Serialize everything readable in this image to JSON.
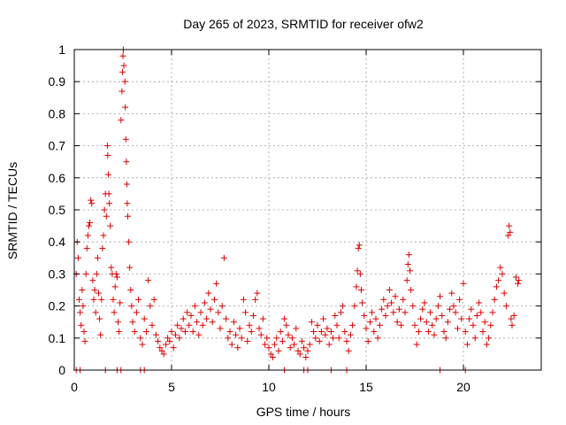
{
  "chart_data": {
    "type": "scatter",
    "title": "Day 265 of 2023, SRMTID for receiver ofw2",
    "xlabel": "GPS time / hours",
    "ylabel": "SRMTID / TECUs",
    "xlim": [
      0,
      24
    ],
    "ylim": [
      0,
      1
    ],
    "xticks": [
      0,
      5,
      10,
      15,
      20
    ],
    "xtick_labels": [
      "0",
      "5",
      "10",
      "15",
      "20"
    ],
    "yticks": [
      0,
      0.1,
      0.2,
      0.3,
      0.4,
      0.5,
      0.6,
      0.7,
      0.8,
      0.9,
      1
    ],
    "ytick_labels": [
      "0",
      "0.1",
      "0.2",
      "0.3",
      "0.4",
      "0.5",
      "0.6",
      "0.7",
      "0.8",
      "0.9",
      "1"
    ],
    "grid": true,
    "marker": "plus",
    "series": [
      {
        "name": "SRMTID",
        "color": "#e00000",
        "points": [
          [
            0.1,
            0.0
          ],
          [
            0.1,
            0.3
          ],
          [
            0.15,
            0.4
          ],
          [
            0.2,
            0.35
          ],
          [
            0.25,
            0.22
          ],
          [
            0.3,
            0.18
          ],
          [
            0.35,
            0.14
          ],
          [
            0.4,
            0.25
          ],
          [
            0.45,
            0.2
          ],
          [
            0.5,
            0.12
          ],
          [
            0.55,
            0.09
          ],
          [
            0.6,
            0.3
          ],
          [
            0.65,
            0.38
          ],
          [
            0.7,
            0.42
          ],
          [
            0.75,
            0.45
          ],
          [
            0.8,
            0.46
          ],
          [
            0.85,
            0.53
          ],
          [
            0.9,
            0.52
          ],
          [
            0.95,
            0.28
          ],
          [
            1.0,
            0.22
          ],
          [
            1.05,
            0.25
          ],
          [
            1.1,
            0.18
          ],
          [
            1.15,
            0.3
          ],
          [
            1.2,
            0.35
          ],
          [
            1.25,
            0.24
          ],
          [
            1.3,
            0.16
          ],
          [
            1.35,
            0.11
          ],
          [
            1.4,
            0.22
          ],
          [
            1.45,
            0.38
          ],
          [
            1.5,
            0.42
          ],
          [
            1.55,
            0.5
          ],
          [
            1.6,
            0.55
          ],
          [
            1.65,
            0.48
          ],
          [
            1.7,
            0.7
          ],
          [
            1.72,
            0.67
          ],
          [
            1.75,
            0.61
          ],
          [
            1.78,
            0.55
          ],
          [
            1.8,
            0.52
          ],
          [
            1.85,
            0.45
          ],
          [
            1.9,
            0.32
          ],
          [
            1.95,
            0.3
          ],
          [
            2.0,
            0.22
          ],
          [
            2.05,
            0.18
          ],
          [
            2.1,
            0.26
          ],
          [
            2.15,
            0.3
          ],
          [
            2.2,
            0.29
          ],
          [
            2.25,
            0.15
          ],
          [
            2.3,
            0.12
          ],
          [
            2.35,
            0.21
          ],
          [
            2.4,
            0.78
          ],
          [
            2.45,
            0.87
          ],
          [
            2.48,
            0.93
          ],
          [
            2.5,
            0.98
          ],
          [
            2.52,
            1.0
          ],
          [
            2.55,
            0.95
          ],
          [
            2.6,
            0.9
          ],
          [
            2.62,
            0.82
          ],
          [
            2.65,
            0.72
          ],
          [
            2.68,
            0.65
          ],
          [
            2.7,
            0.58
          ],
          [
            2.72,
            0.52
          ],
          [
            2.75,
            0.48
          ],
          [
            2.8,
            0.4
          ],
          [
            2.85,
            0.32
          ],
          [
            2.9,
            0.25
          ],
          [
            2.95,
            0.2
          ],
          [
            3.0,
            0.15
          ],
          [
            3.1,
            0.12
          ],
          [
            3.2,
            0.18
          ],
          [
            3.3,
            0.22
          ],
          [
            3.4,
            0.1
          ],
          [
            3.5,
            0.08
          ],
          [
            3.6,
            0.16
          ],
          [
            3.7,
            0.12
          ],
          [
            3.8,
            0.28
          ],
          [
            3.9,
            0.2
          ],
          [
            4.0,
            0.14
          ],
          [
            4.1,
            0.22
          ],
          [
            4.2,
            0.11
          ],
          [
            4.3,
            0.09
          ],
          [
            4.4,
            0.07
          ],
          [
            4.5,
            0.06
          ],
          [
            4.6,
            0.05
          ],
          [
            4.7,
            0.08
          ],
          [
            4.8,
            0.1
          ],
          [
            4.9,
            0.09
          ],
          [
            5.0,
            0.12
          ],
          [
            5.1,
            0.07
          ],
          [
            5.2,
            0.11
          ],
          [
            5.3,
            0.14
          ],
          [
            5.4,
            0.1
          ],
          [
            5.5,
            0.13
          ],
          [
            5.6,
            0.16
          ],
          [
            5.7,
            0.12
          ],
          [
            5.8,
            0.18
          ],
          [
            5.9,
            0.14
          ],
          [
            6.0,
            0.17
          ],
          [
            6.1,
            0.12
          ],
          [
            6.2,
            0.2
          ],
          [
            6.3,
            0.15
          ],
          [
            6.4,
            0.11
          ],
          [
            6.5,
            0.18
          ],
          [
            6.6,
            0.14
          ],
          [
            6.7,
            0.21
          ],
          [
            6.8,
            0.16
          ],
          [
            6.9,
            0.24
          ],
          [
            7.0,
            0.19
          ],
          [
            7.1,
            0.15
          ],
          [
            7.2,
            0.22
          ],
          [
            7.3,
            0.27
          ],
          [
            7.4,
            0.18
          ],
          [
            7.5,
            0.13
          ],
          [
            7.6,
            0.2
          ],
          [
            7.7,
            0.35
          ],
          [
            7.8,
            0.16
          ],
          [
            7.9,
            0.1
          ],
          [
            8.0,
            0.12
          ],
          [
            8.1,
            0.08
          ],
          [
            8.2,
            0.15
          ],
          [
            8.3,
            0.11
          ],
          [
            8.4,
            0.07
          ],
          [
            8.5,
            0.13
          ],
          [
            8.6,
            0.1
          ],
          [
            8.7,
            0.22
          ],
          [
            8.8,
            0.18
          ],
          [
            8.9,
            0.09
          ],
          [
            9.0,
            0.14
          ],
          [
            9.1,
            0.12
          ],
          [
            9.2,
            0.17
          ],
          [
            9.3,
            0.22
          ],
          [
            9.4,
            0.24
          ],
          [
            9.5,
            0.13
          ],
          [
            9.6,
            0.11
          ],
          [
            9.7,
            0.16
          ],
          [
            9.8,
            0.08
          ],
          [
            9.9,
            0.1
          ],
          [
            10.0,
            0.07
          ],
          [
            10.1,
            0.05
          ],
          [
            10.2,
            0.04
          ],
          [
            10.3,
            0.08
          ],
          [
            10.4,
            0.1
          ],
          [
            10.5,
            0.06
          ],
          [
            10.6,
            0.12
          ],
          [
            10.7,
            0.09
          ],
          [
            10.8,
            0.16
          ],
          [
            10.9,
            0.14
          ],
          [
            11.0,
            0.11
          ],
          [
            11.1,
            0.07
          ],
          [
            11.2,
            0.1
          ],
          [
            11.3,
            0.08
          ],
          [
            11.4,
            0.13
          ],
          [
            11.5,
            0.06
          ],
          [
            11.6,
            0.05
          ],
          [
            11.7,
            0.09
          ],
          [
            11.8,
            0.07
          ],
          [
            11.9,
            0.04
          ],
          [
            12.0,
            0.06
          ],
          [
            12.1,
            0.08
          ],
          [
            12.2,
            0.15
          ],
          [
            12.3,
            0.12
          ],
          [
            12.4,
            0.1
          ],
          [
            12.5,
            0.14
          ],
          [
            12.6,
            0.09
          ],
          [
            12.7,
            0.12
          ],
          [
            12.8,
            0.16
          ],
          [
            12.9,
            0.11
          ],
          [
            13.0,
            0.13
          ],
          [
            13.1,
            0.08
          ],
          [
            13.2,
            0.12
          ],
          [
            13.3,
            0.1
          ],
          [
            13.4,
            0.17
          ],
          [
            13.5,
            0.14
          ],
          [
            13.6,
            0.1
          ],
          [
            13.7,
            0.18
          ],
          [
            13.8,
            0.2
          ],
          [
            13.9,
            0.12
          ],
          [
            14.0,
            0.09
          ],
          [
            14.1,
            0.06
          ],
          [
            14.2,
            0.11
          ],
          [
            14.3,
            0.14
          ],
          [
            14.4,
            0.2
          ],
          [
            14.5,
            0.26
          ],
          [
            14.55,
            0.31
          ],
          [
            14.6,
            0.38
          ],
          [
            14.65,
            0.39
          ],
          [
            14.7,
            0.3
          ],
          [
            14.75,
            0.25
          ],
          [
            14.8,
            0.21
          ],
          [
            14.9,
            0.17
          ],
          [
            15.0,
            0.13
          ],
          [
            15.1,
            0.09
          ],
          [
            15.2,
            0.15
          ],
          [
            15.3,
            0.18
          ],
          [
            15.4,
            0.12
          ],
          [
            15.5,
            0.16
          ],
          [
            15.6,
            0.1
          ],
          [
            15.7,
            0.14
          ],
          [
            15.8,
            0.19
          ],
          [
            15.9,
            0.22
          ],
          [
            16.0,
            0.17
          ],
          [
            16.1,
            0.2
          ],
          [
            16.2,
            0.25
          ],
          [
            16.3,
            0.21
          ],
          [
            16.4,
            0.18
          ],
          [
            16.5,
            0.23
          ],
          [
            16.6,
            0.15
          ],
          [
            16.7,
            0.19
          ],
          [
            16.8,
            0.14
          ],
          [
            16.9,
            0.22
          ],
          [
            17.0,
            0.18
          ],
          [
            17.1,
            0.28
          ],
          [
            17.15,
            0.33
          ],
          [
            17.2,
            0.36
          ],
          [
            17.25,
            0.31
          ],
          [
            17.3,
            0.25
          ],
          [
            17.4,
            0.2
          ],
          [
            17.5,
            0.14
          ],
          [
            17.6,
            0.08
          ],
          [
            17.7,
            0.12
          ],
          [
            17.8,
            0.16
          ],
          [
            17.9,
            0.19
          ],
          [
            18.0,
            0.21
          ],
          [
            18.1,
            0.15
          ],
          [
            18.2,
            0.12
          ],
          [
            18.3,
            0.18
          ],
          [
            18.4,
            0.14
          ],
          [
            18.5,
            0.11
          ],
          [
            18.6,
            0.16
          ],
          [
            18.7,
            0.2
          ],
          [
            18.8,
            0.23
          ],
          [
            18.9,
            0.17
          ],
          [
            19.0,
            0.12
          ],
          [
            19.1,
            0.1
          ],
          [
            19.2,
            0.15
          ],
          [
            19.3,
            0.19
          ],
          [
            19.4,
            0.24
          ],
          [
            19.5,
            0.2
          ],
          [
            19.6,
            0.18
          ],
          [
            19.7,
            0.13
          ],
          [
            19.8,
            0.22
          ],
          [
            19.9,
            0.16
          ],
          [
            20.0,
            0.27
          ],
          [
            20.1,
            0.12
          ],
          [
            20.2,
            0.08
          ],
          [
            20.3,
            0.16
          ],
          [
            20.4,
            0.19
          ],
          [
            20.5,
            0.14
          ],
          [
            20.6,
            0.1
          ],
          [
            20.7,
            0.17
          ],
          [
            20.8,
            0.21
          ],
          [
            20.9,
            0.18
          ],
          [
            21.0,
            0.12
          ],
          [
            21.1,
            0.15
          ],
          [
            21.2,
            0.08
          ],
          [
            21.3,
            0.1
          ],
          [
            21.4,
            0.14
          ],
          [
            21.5,
            0.18
          ],
          [
            21.6,
            0.22
          ],
          [
            21.7,
            0.26
          ],
          [
            21.8,
            0.28
          ],
          [
            21.9,
            0.32
          ],
          [
            22.0,
            0.3
          ],
          [
            22.1,
            0.24
          ],
          [
            22.2,
            0.2
          ],
          [
            22.3,
            0.42
          ],
          [
            22.35,
            0.45
          ],
          [
            22.4,
            0.43
          ],
          [
            22.45,
            0.16
          ],
          [
            22.5,
            0.14
          ],
          [
            22.6,
            0.17
          ],
          [
            22.7,
            0.29
          ],
          [
            22.8,
            0.27
          ],
          [
            22.85,
            0.28
          ],
          [
            0.3,
            0.0
          ],
          [
            1.6,
            0.0
          ],
          [
            2.2,
            0.0
          ],
          [
            2.4,
            0.0
          ],
          [
            3.4,
            0.0
          ],
          [
            3.6,
            0.0
          ],
          [
            10.8,
            0.0
          ],
          [
            11.8,
            0.0
          ],
          [
            12.0,
            0.0
          ],
          [
            13.2,
            0.0
          ],
          [
            14.0,
            0.0
          ],
          [
            18.8,
            0.0
          ],
          [
            20.1,
            0.0
          ]
        ]
      }
    ]
  }
}
